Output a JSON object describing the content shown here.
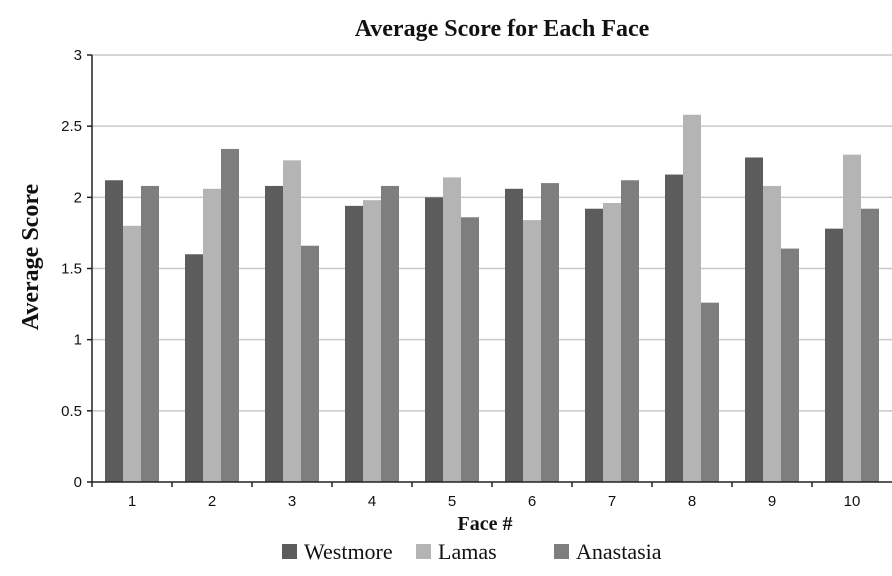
{
  "chart_data": {
    "type": "bar",
    "title": "Average Score for Each Face",
    "xlabel": "Face #",
    "ylabel": "Average Score",
    "ylim": [
      0,
      3
    ],
    "yticks": [
      "0",
      "0.5",
      "1",
      "1.5",
      "2",
      "2.5",
      "3"
    ],
    "ytick_values": [
      0,
      0.5,
      1,
      1.5,
      2,
      2.5,
      3
    ],
    "categories": [
      "1",
      "2",
      "3",
      "4",
      "5",
      "6",
      "7",
      "8",
      "9",
      "10"
    ],
    "series": [
      {
        "name": "Westmore",
        "color": "#5c5c5c",
        "values": [
          2.12,
          1.6,
          2.08,
          1.94,
          2.0,
          2.06,
          1.92,
          2.16,
          2.28,
          1.78
        ]
      },
      {
        "name": "Lamas",
        "color": "#b4b4b4",
        "values": [
          1.8,
          2.06,
          2.26,
          1.98,
          2.14,
          1.84,
          1.96,
          2.58,
          2.08,
          2.3
        ]
      },
      {
        "name": "Anastasia",
        "color": "#7e7e7e",
        "values": [
          2.08,
          2.34,
          1.66,
          2.08,
          1.86,
          2.1,
          2.12,
          1.26,
          1.64,
          1.92
        ]
      }
    ],
    "grid": "horizontal",
    "legend_position": "bottom"
  }
}
